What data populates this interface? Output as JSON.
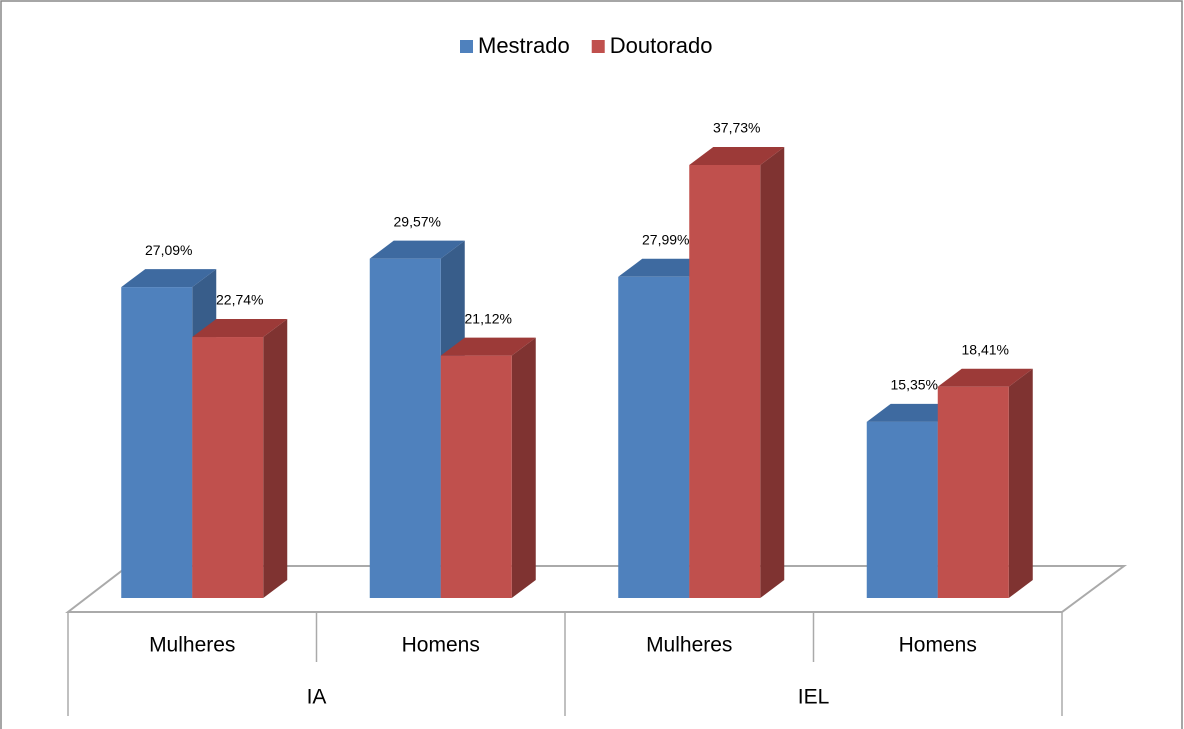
{
  "chart_data": {
    "type": "bar3d",
    "categories": [
      "Mulheres",
      "Homens",
      "Mulheres",
      "Homens"
    ],
    "groups": [
      "IA",
      "IEL"
    ],
    "series": [
      {
        "name": "Mestrado",
        "color": "#4f81bd",
        "side": "#385d8a",
        "top": "#3e6aa0",
        "values": [
          27.09,
          29.57,
          27.99,
          15.35
        ],
        "value_labels": [
          "27,09%",
          "29,57%",
          "27,99%",
          "15,35%"
        ]
      },
      {
        "name": "Doutorado",
        "color": "#c0504d",
        "side": "#7f3331",
        "top": "#9c3a38",
        "values": [
          22.74,
          21.12,
          37.73,
          18.41
        ],
        "value_labels": [
          "22,74%",
          "21,12%",
          "37,73%",
          "18,41%"
        ]
      }
    ],
    "legend": "top"
  }
}
